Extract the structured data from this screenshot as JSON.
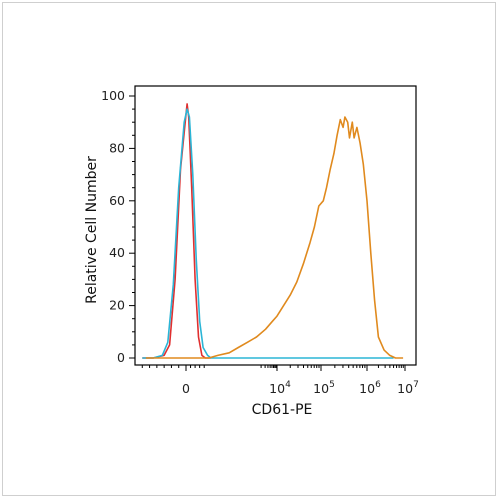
{
  "chart_data": {
    "type": "line",
    "title": "",
    "xlabel": "CD61-PE",
    "ylabel": "Relative Cell Number",
    "x_scale": "biexponential",
    "x_ticks": [
      {
        "base": "0",
        "exp": ""
      },
      {
        "base": "10",
        "exp": "4"
      },
      {
        "base": "10",
        "exp": "5"
      },
      {
        "base": "10",
        "exp": "6"
      },
      {
        "base": "10",
        "exp": "7"
      }
    ],
    "y_ticks": [
      0,
      20,
      40,
      60,
      80,
      100
    ],
    "ylim": [
      0,
      100
    ],
    "grid": false,
    "legend": "none",
    "series": [
      {
        "color": "#e03030",
        "points": [
          [
            -1.2,
            0
          ],
          [
            -0.9,
            0
          ],
          [
            -0.6,
            1
          ],
          [
            -0.45,
            5
          ],
          [
            -0.3,
            30
          ],
          [
            -0.15,
            72
          ],
          [
            0,
            93
          ],
          [
            0.05,
            97
          ],
          [
            0.12,
            92
          ],
          [
            0.25,
            65
          ],
          [
            0.4,
            30
          ],
          [
            0.55,
            8
          ],
          [
            0.7,
            1
          ],
          [
            0.85,
            0
          ],
          [
            1.1,
            0
          ]
        ]
      },
      {
        "color": "#2bb5d6",
        "points": [
          [
            -1.2,
            0
          ],
          [
            -0.9,
            0
          ],
          [
            -0.65,
            1
          ],
          [
            -0.5,
            6
          ],
          [
            -0.35,
            28
          ],
          [
            -0.2,
            65
          ],
          [
            -0.05,
            90
          ],
          [
            0.05,
            95
          ],
          [
            0.15,
            92
          ],
          [
            0.3,
            70
          ],
          [
            0.45,
            38
          ],
          [
            0.6,
            14
          ],
          [
            0.75,
            4
          ],
          [
            0.95,
            1
          ],
          [
            1.1,
            0
          ],
          [
            3.5,
            0
          ],
          [
            6.7,
            0
          ]
        ]
      },
      {
        "color": "#e08a1e",
        "points": [
          [
            -1.1,
            0
          ],
          [
            -0.6,
            0
          ],
          [
            0.5,
            0
          ],
          [
            1.0,
            0
          ],
          [
            1.4,
            1
          ],
          [
            1.9,
            2
          ],
          [
            2.3,
            4
          ],
          [
            2.7,
            6
          ],
          [
            3.1,
            8
          ],
          [
            3.5,
            11
          ],
          [
            3.8,
            14
          ],
          [
            4.0,
            16
          ],
          [
            4.15,
            20
          ],
          [
            4.3,
            24
          ],
          [
            4.45,
            29
          ],
          [
            4.6,
            36
          ],
          [
            4.75,
            44
          ],
          [
            4.85,
            50
          ],
          [
            4.95,
            58
          ],
          [
            5.05,
            60
          ],
          [
            5.12,
            65
          ],
          [
            5.2,
            72
          ],
          [
            5.28,
            78
          ],
          [
            5.35,
            85
          ],
          [
            5.42,
            91
          ],
          [
            5.48,
            88
          ],
          [
            5.52,
            92
          ],
          [
            5.58,
            90
          ],
          [
            5.62,
            84
          ],
          [
            5.68,
            90
          ],
          [
            5.72,
            84
          ],
          [
            5.78,
            88
          ],
          [
            5.85,
            82
          ],
          [
            5.92,
            74
          ],
          [
            6.0,
            60
          ],
          [
            6.1,
            40
          ],
          [
            6.2,
            22
          ],
          [
            6.3,
            8
          ],
          [
            6.45,
            3
          ],
          [
            6.6,
            1
          ],
          [
            6.75,
            0
          ],
          [
            6.95,
            0
          ]
        ]
      }
    ]
  }
}
